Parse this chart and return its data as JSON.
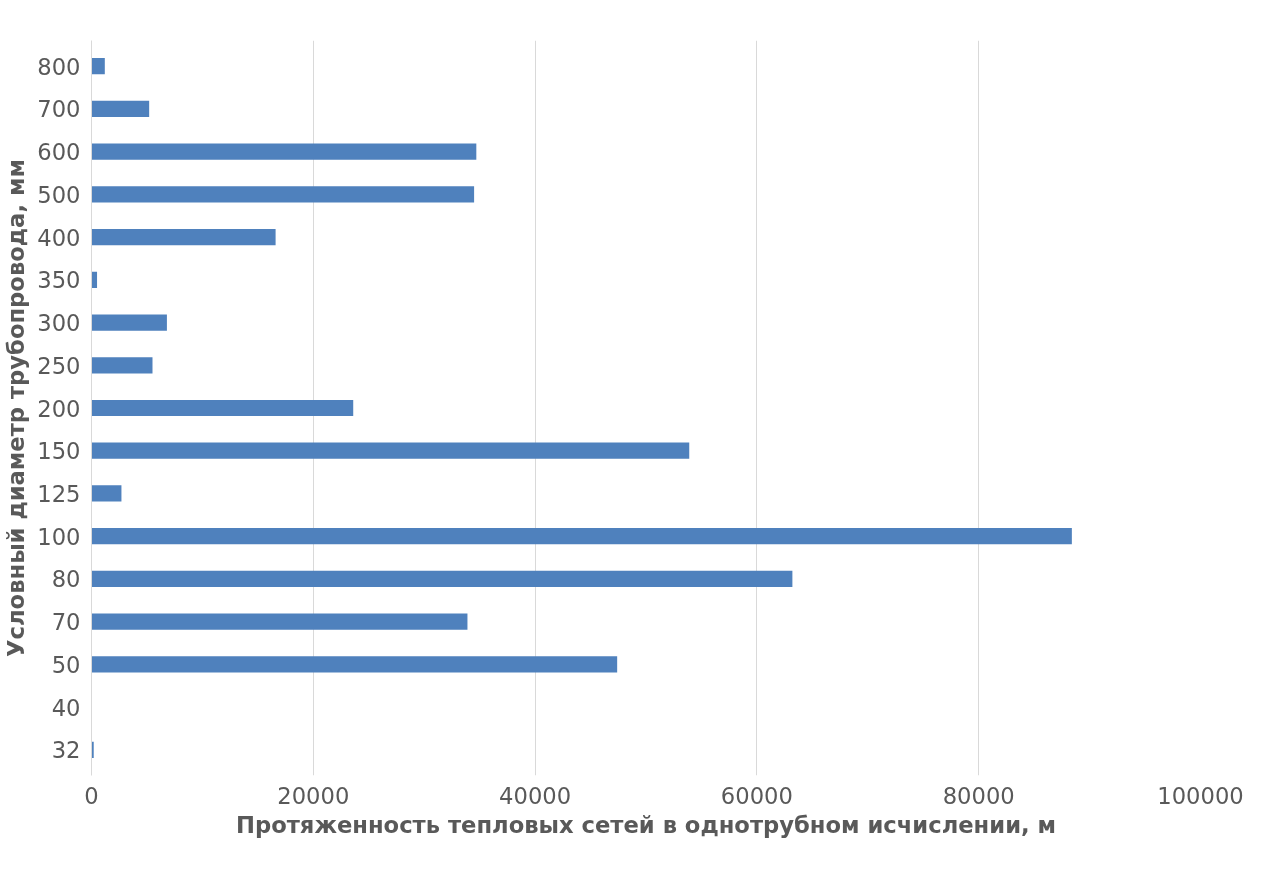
{
  "chart_data": {
    "type": "bar",
    "orientation": "horizontal",
    "xlabel": "Протяженность тепловых сетей в однотрубном исчислении, м",
    "ylabel": "Условный диаметр трубопровода, мм",
    "categories": [
      "800",
      "700",
      "600",
      "500",
      "400",
      "350",
      "300",
      "250",
      "200",
      "150",
      "125",
      "100",
      "80",
      "70",
      "50",
      "40",
      "32"
    ],
    "values": [
      1200,
      5200,
      34700,
      34500,
      16600,
      500,
      6800,
      5500,
      23600,
      53900,
      2700,
      88400,
      63200,
      33900,
      47400,
      0,
      200
    ],
    "color": "#4f81bd",
    "xlim": [
      0,
      100000
    ],
    "xticks": [
      0,
      20000,
      40000,
      60000,
      80000,
      100000
    ],
    "grid": "x"
  }
}
